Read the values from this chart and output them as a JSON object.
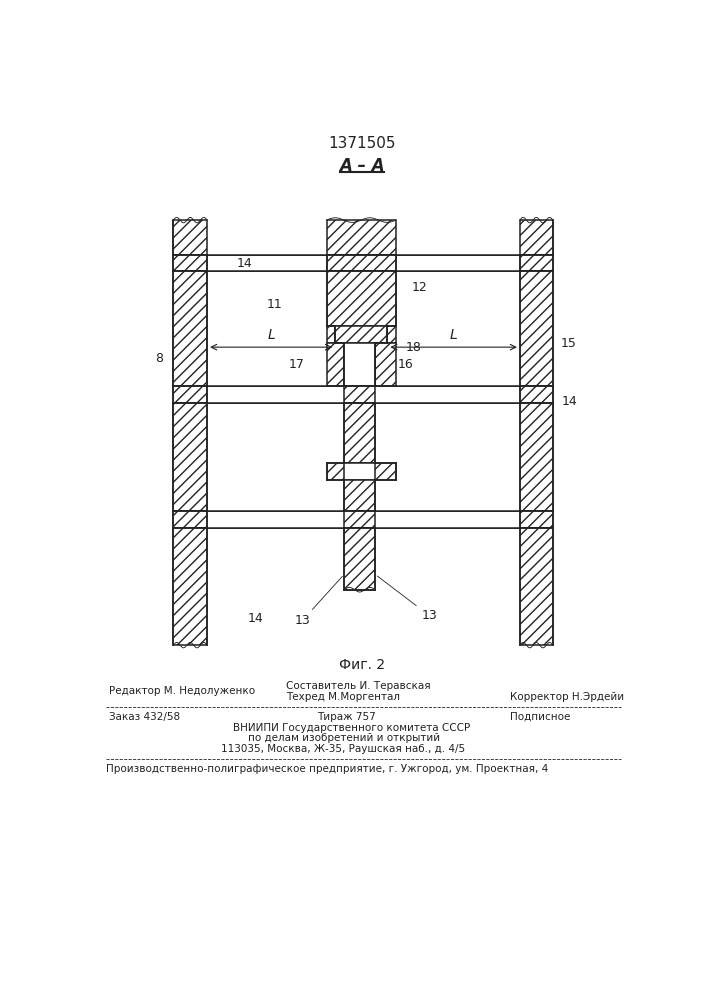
{
  "title": "1371505",
  "section_label": "A – A",
  "fig_label": "Фиг. 2",
  "bg_color": "#ffffff",
  "line_color": "#222222",
  "footer": {
    "col1_row1": "Редактор М. Недолуженко",
    "col2_row1": "Составитель И. Теравская",
    "col2_row2": "Техред М.Моргентал",
    "col3_row2": "Корректор Н.Эрдейи",
    "order": "Заказ 432/58",
    "tirazh": "Тираж 757",
    "podp": "Подписное",
    "vniip1": "ВНИИПИ Государственного комитета СССР",
    "vniip2": "по делам изобретений и открытий",
    "vniip3": "113035, Москва, Ж-35, Раушская наб., д. 4/5",
    "ppp": "Производственно-полиграфическое предприятие, г. Ужгород, ум. Проектная, 4"
  }
}
